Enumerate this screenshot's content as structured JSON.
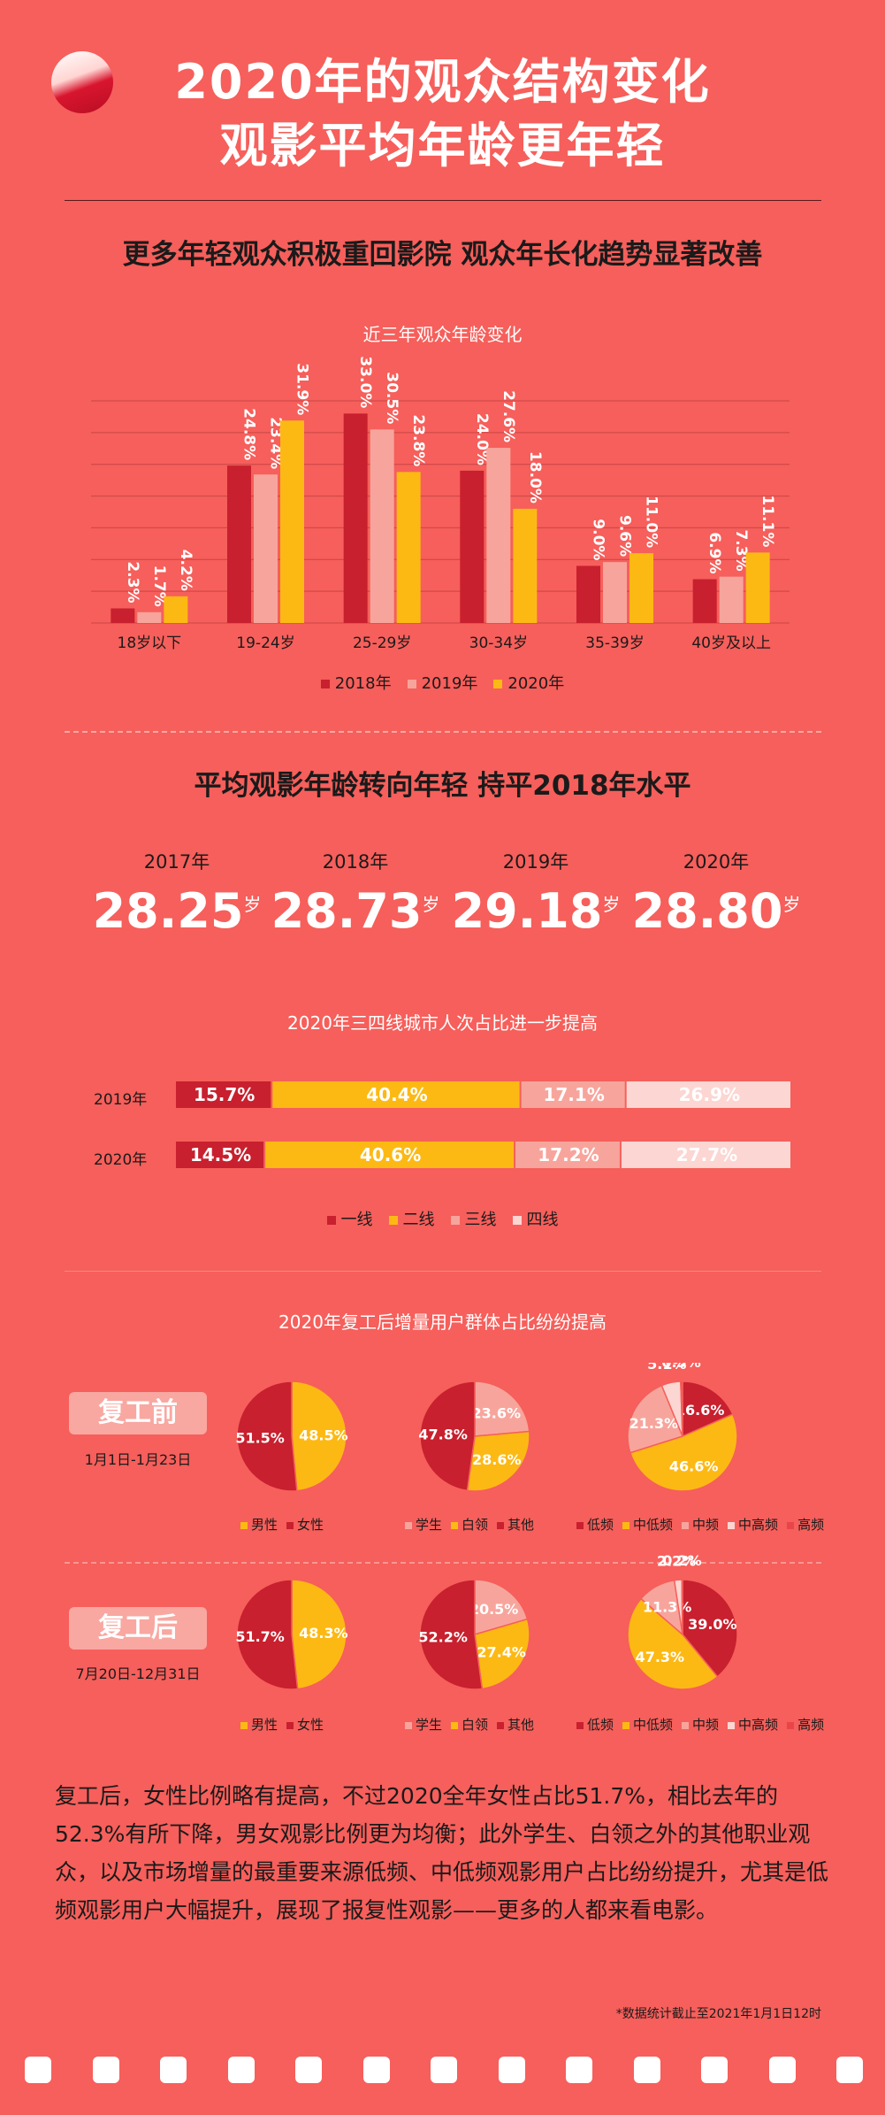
{
  "header": {
    "title_line1": "2020年的观众结构变化",
    "title_line2": "观影平均年龄更年轻"
  },
  "colors": {
    "background": "#f65f5b",
    "y2018": "#c8202e",
    "y2019": "#f7a59c",
    "y2020": "#fdb913",
    "tier1": "#c8202e",
    "tier2": "#fdb913",
    "tier3": "#f7a59c",
    "tier4": "#fcd6d2"
  },
  "section1": {
    "heading": "更多年轻观众积极重回影院 观众年长化趋势显著改善"
  },
  "section2": {
    "heading": "平均观影年龄转向年轻 持平2018年水平",
    "unit": "岁",
    "years": [
      {
        "year": "2017年",
        "value": "28.25"
      },
      {
        "year": "2018年",
        "value": "28.73"
      },
      {
        "year": "2019年",
        "value": "29.18"
      },
      {
        "year": "2020年",
        "value": "28.80"
      }
    ]
  },
  "chart_data": [
    {
      "type": "bar",
      "title": "近三年观众年龄变化",
      "categories": [
        "18岁以下",
        "19-24岁",
        "25-29岁",
        "30-34岁",
        "35-39岁",
        "40岁及以上"
      ],
      "series": [
        {
          "name": "2018年",
          "values": [
            2.3,
            24.8,
            33.0,
            24.0,
            9.0,
            6.9
          ]
        },
        {
          "name": "2019年",
          "values": [
            1.7,
            23.4,
            30.5,
            27.6,
            9.6,
            7.3
          ]
        },
        {
          "name": "2020年",
          "values": [
            4.2,
            31.9,
            23.8,
            18.0,
            11.0,
            11.1
          ]
        }
      ],
      "ylim": [
        0,
        35
      ],
      "grid": true,
      "value_suffix": "%",
      "legend_position": "bottom"
    },
    {
      "type": "bar",
      "stacked": true,
      "orientation": "horizontal",
      "title": "2020年三四线城市人次占比进一步提高",
      "categories": [
        "2019年",
        "2020年"
      ],
      "series": [
        {
          "name": "一线",
          "values": [
            15.7,
            14.5
          ]
        },
        {
          "name": "二线",
          "values": [
            40.4,
            40.6
          ]
        },
        {
          "name": "三线",
          "values": [
            17.1,
            17.2
          ]
        },
        {
          "name": "四线",
          "values": [
            26.9,
            27.7
          ]
        }
      ],
      "value_suffix": "%",
      "legend_position": "bottom"
    },
    {
      "type": "pie",
      "title": "2020年复工后增量用户群体占比纷纷提高",
      "phases": [
        {
          "label": "复工前",
          "dates": "1月1日-1月23日",
          "pies": [
            {
              "name": "gender",
              "slices": [
                {
                  "label": "男性",
                  "value": 48.5,
                  "color": "#fdb913",
                  "show": "48.5"
                },
                {
                  "label": "女性",
                  "value": 51.5,
                  "color": "#c8202e",
                  "show": "51.5"
                }
              ]
            },
            {
              "name": "occupation",
              "slices": [
                {
                  "label": "学生",
                  "value": 23.6,
                  "color": "#f7a59c",
                  "show": "23.6"
                },
                {
                  "label": "白领",
                  "value": 28.6,
                  "color": "#fdb913",
                  "show": "28.6"
                },
                {
                  "label": "其他",
                  "value": 47.8,
                  "color": "#c8202e",
                  "show": "47.8"
                }
              ]
            },
            {
              "name": "frequency",
              "slices": [
                {
                  "label": "低频",
                  "value": 16.6,
                  "color": "#c8202e",
                  "show": "16.6"
                },
                {
                  "label": "中低频",
                  "value": 46.6,
                  "color": "#fdb913",
                  "show": "46.6"
                },
                {
                  "label": "中频",
                  "value": 21.3,
                  "color": "#f7a59c",
                  "show": "21.3"
                },
                {
                  "label": "中高频",
                  "value": 5.1,
                  "color": "#fcd6d2",
                  "show": "5.1"
                },
                {
                  "label": "高频",
                  "value": 0.5,
                  "color": "#e8454a",
                  "show": "0.5"
                }
              ]
            }
          ]
        },
        {
          "label": "复工后",
          "dates": "7月20日-12月31日",
          "pies": [
            {
              "name": "gender",
              "slices": [
                {
                  "label": "男性",
                  "value": 48.3,
                  "color": "#fdb913",
                  "show": "48.3"
                },
                {
                  "label": "女性",
                  "value": 51.7,
                  "color": "#c8202e",
                  "show": "51.7"
                }
              ]
            },
            {
              "name": "occupation",
              "slices": [
                {
                  "label": "学生",
                  "value": 20.5,
                  "color": "#f7a59c",
                  "show": "20.5"
                },
                {
                  "label": "白领",
                  "value": 27.4,
                  "color": "#fdb913",
                  "show": "27.4"
                },
                {
                  "label": "其他",
                  "value": 52.2,
                  "color": "#c8202e",
                  "show": "52.2"
                }
              ]
            },
            {
              "name": "frequency",
              "slices": [
                {
                  "label": "低频",
                  "value": 39.0,
                  "color": "#c8202e",
                  "show": "39.0"
                },
                {
                  "label": "中低频",
                  "value": 47.3,
                  "color": "#fdb913",
                  "show": "47.3"
                },
                {
                  "label": "中频",
                  "value": 11.3,
                  "color": "#f7a59c",
                  "show": "11.3"
                },
                {
                  "label": "中高频",
                  "value": 2.2,
                  "color": "#fcd6d2",
                  "show": "2.2"
                },
                {
                  "label": "高频",
                  "value": 0.2,
                  "color": "#e8454a",
                  "show": "0.2"
                }
              ]
            }
          ]
        }
      ],
      "legends": {
        "gender": [
          "男性",
          "女性"
        ],
        "occupation": [
          "学生",
          "白领",
          "其他"
        ],
        "frequency": [
          "低频",
          "中低频",
          "中频",
          "中高频",
          "高频"
        ]
      },
      "value_suffix": "%"
    }
  ],
  "summary": "复工后，女性比例略有提高，不过2020全年女性占比51.7%，相比去年的52.3%有所下降，男女观影比例更为均衡；此外学生、白领之外的其他职业观众，以及市场增量的最重要来源低频、中低频观影用户占比纷纷提升，尤其是低频观影用户大幅提升，展现了报复性观影——更多的人都来看电影。",
  "footnote": "*数据统计截止至2021年1月1日12时"
}
